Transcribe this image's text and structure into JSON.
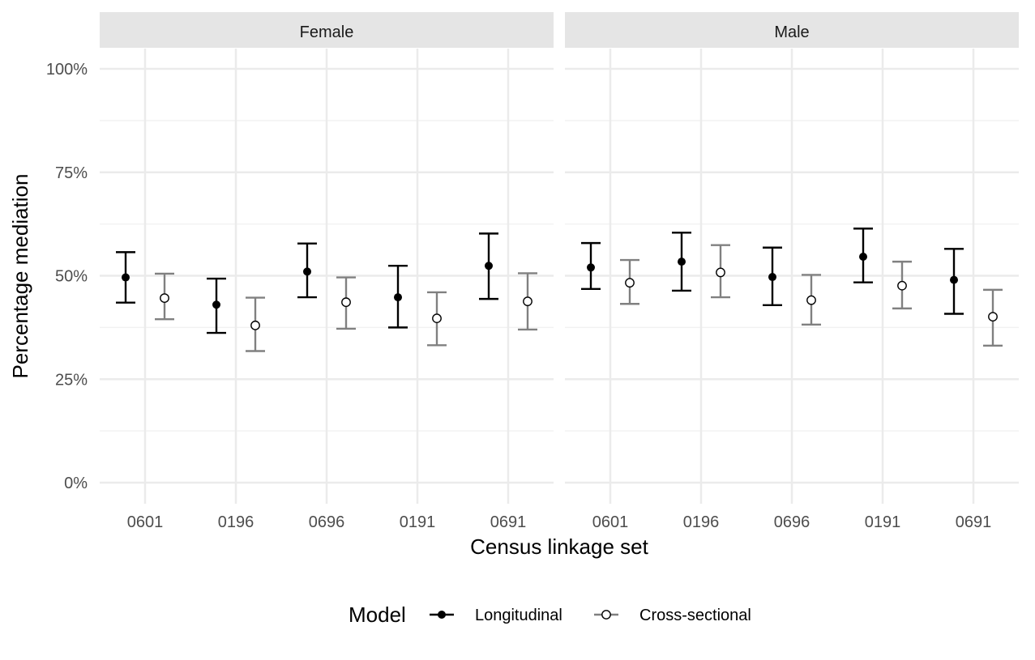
{
  "chart_data": {
    "type": "scatter",
    "subtype": "point-with-error-bars, faceted",
    "xlabel": "Census linkage set",
    "ylabel": "Percentage mediation",
    "categories": [
      "0601",
      "0196",
      "0696",
      "0191",
      "0691"
    ],
    "y_ticks": [
      "0%",
      "25%",
      "50%",
      "75%",
      "100%"
    ],
    "ylim": [
      0,
      100
    ],
    "grid": true,
    "legend": {
      "title": "Model",
      "position": "bottom",
      "entries": [
        {
          "label": "Longitudinal",
          "color": "#000000",
          "marker": "filled-circle"
        },
        {
          "label": "Cross-sectional",
          "color": "#808080",
          "marker": "open-circle"
        }
      ]
    },
    "facets": [
      {
        "label": "Female",
        "series": [
          {
            "model": "Longitudinal",
            "values": [
              49.6,
              43.0,
              51.0,
              44.8,
              52.4
            ],
            "lower": [
              43.5,
              36.2,
              44.8,
              37.5,
              44.4
            ],
            "upper": [
              55.7,
              49.3,
              57.8,
              52.4,
              60.2
            ]
          },
          {
            "model": "Cross-sectional",
            "values": [
              44.6,
              38.0,
              43.6,
              39.7,
              43.8
            ],
            "lower": [
              39.5,
              31.8,
              37.2,
              33.2,
              37.0
            ],
            "upper": [
              50.5,
              44.7,
              49.6,
              46.0,
              50.6
            ]
          }
        ]
      },
      {
        "label": "Male",
        "series": [
          {
            "model": "Longitudinal",
            "values": [
              52.0,
              53.4,
              49.7,
              54.6,
              49.0
            ],
            "lower": [
              46.8,
              46.4,
              42.9,
              48.4,
              40.8
            ],
            "upper": [
              57.9,
              60.4,
              56.8,
              61.4,
              56.5
            ]
          },
          {
            "model": "Cross-sectional",
            "values": [
              48.3,
              50.8,
              44.1,
              47.6,
              40.1
            ],
            "lower": [
              43.2,
              44.8,
              38.2,
              42.1,
              33.1
            ],
            "upper": [
              53.8,
              57.4,
              50.2,
              53.4,
              46.6
            ]
          }
        ]
      }
    ]
  }
}
